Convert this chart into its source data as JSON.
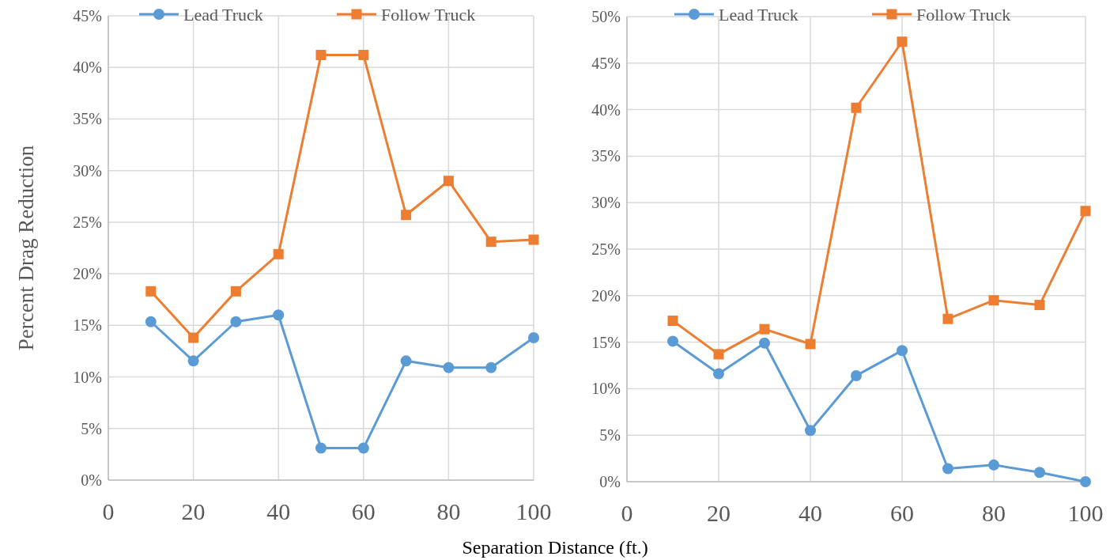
{
  "chart_data": [
    {
      "type": "line",
      "xlabel": "Separation Distance (ft.)",
      "ylabel": "Percent Drag Reduction",
      "x": [
        10,
        20,
        30,
        40,
        50,
        60,
        70,
        80,
        90,
        100
      ],
      "xlim": [
        0,
        100
      ],
      "xticks": [
        0,
        20,
        40,
        60,
        80,
        100
      ],
      "ylim": [
        0,
        45
      ],
      "yticks": [
        {
          "value": 0,
          "label": "0%"
        },
        {
          "value": 5,
          "label": "5%"
        },
        {
          "value": 10,
          "label": "10%"
        },
        {
          "value": 15,
          "label": "15%"
        },
        {
          "value": 20,
          "label": "20%"
        },
        {
          "value": 25,
          "label": "25%"
        },
        {
          "value": 30,
          "label": "30%"
        },
        {
          "value": 35,
          "label": "35%"
        },
        {
          "value": 40,
          "label": "40%"
        },
        {
          "value": 45,
          "label": "45%"
        }
      ],
      "grid": true,
      "legend": "top",
      "series": [
        {
          "name": "Lead Truck",
          "color": "#5b9bd5",
          "marker": "circle",
          "values": [
            15.35,
            11.55,
            15.35,
            16.0,
            3.1,
            3.1,
            11.55,
            10.9,
            10.9,
            13.8
          ]
        },
        {
          "name": "Follow Truck",
          "color": "#ed7d31",
          "marker": "square",
          "values": [
            18.3,
            13.8,
            18.3,
            21.9,
            41.2,
            41.2,
            25.7,
            29.0,
            23.1,
            23.3
          ]
        }
      ]
    },
    {
      "type": "line",
      "x": [
        10,
        20,
        30,
        40,
        50,
        60,
        70,
        80,
        90,
        100
      ],
      "xlim": [
        0,
        100
      ],
      "xticks": [
        0,
        20,
        40,
        60,
        80,
        100
      ],
      "ylim": [
        0,
        50
      ],
      "yticks": [
        {
          "value": 0,
          "label": "0%"
        },
        {
          "value": 5,
          "label": "5%"
        },
        {
          "value": 10,
          "label": "10%"
        },
        {
          "value": 15,
          "label": "15%"
        },
        {
          "value": 20,
          "label": "20%"
        },
        {
          "value": 25,
          "label": "25%"
        },
        {
          "value": 30,
          "label": "30%"
        },
        {
          "value": 35,
          "label": "35%"
        },
        {
          "value": 40,
          "label": "40%"
        },
        {
          "value": 45,
          "label": "45%"
        },
        {
          "value": 50,
          "label": "50%"
        }
      ],
      "grid": true,
      "legend": "top",
      "series": [
        {
          "name": "Lead Truck",
          "color": "#5b9bd5",
          "marker": "circle",
          "values": [
            15.1,
            11.6,
            14.9,
            5.5,
            11.4,
            14.1,
            1.4,
            1.8,
            1.0,
            0
          ]
        },
        {
          "name": "Follow Truck",
          "color": "#ed7d31",
          "marker": "square",
          "values": [
            17.3,
            13.7,
            16.4,
            14.8,
            40.2,
            47.3,
            17.5,
            19.5,
            19.0,
            29.1
          ]
        }
      ]
    }
  ]
}
